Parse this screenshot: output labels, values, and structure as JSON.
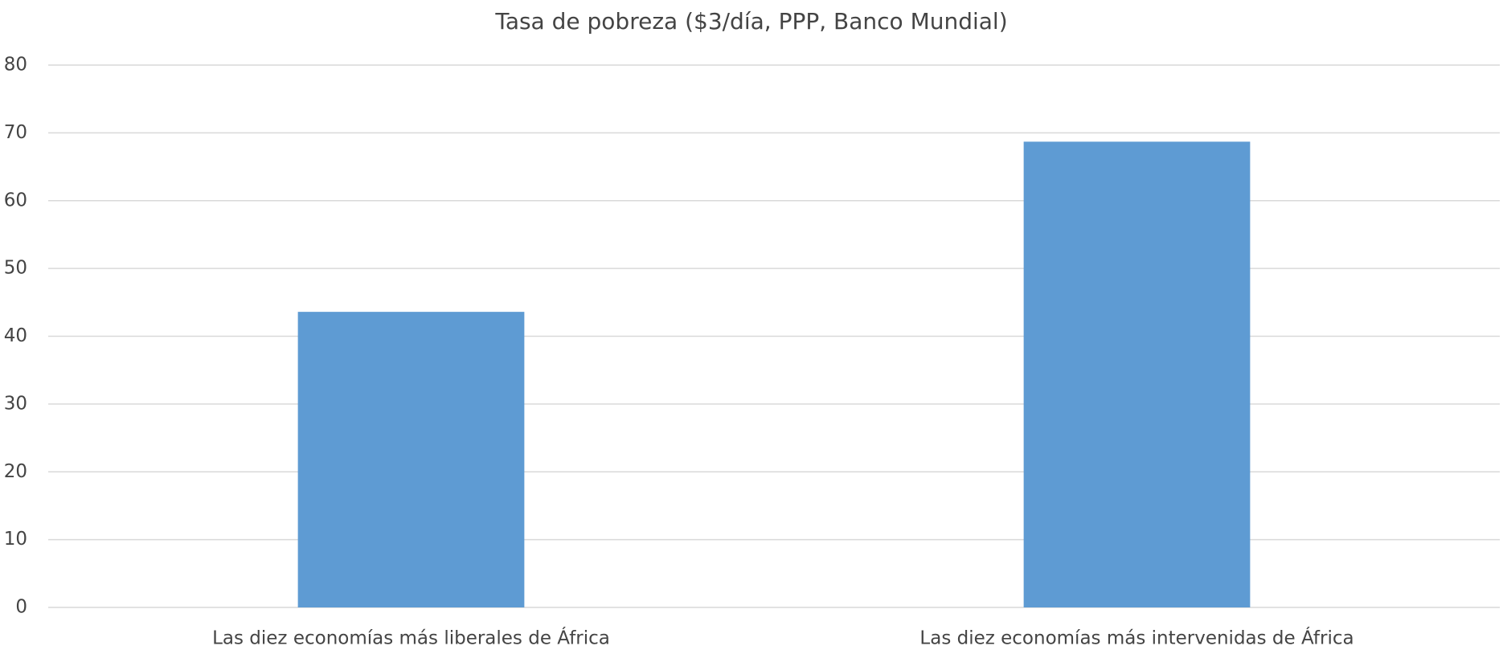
{
  "chart_data": {
    "type": "bar",
    "title": "Tasa de pobreza ($3/día, PPP, Banco Mundial)",
    "categories": [
      "Las diez economías más liberales de África",
      "Las diez economías más intervenidas de África"
    ],
    "values": [
      43.6,
      68.7
    ],
    "color": "#5e9bd3",
    "ylim": [
      0,
      80
    ],
    "yticks": [
      0,
      10,
      20,
      30,
      40,
      50,
      60,
      70,
      80
    ],
    "grid": true
  }
}
